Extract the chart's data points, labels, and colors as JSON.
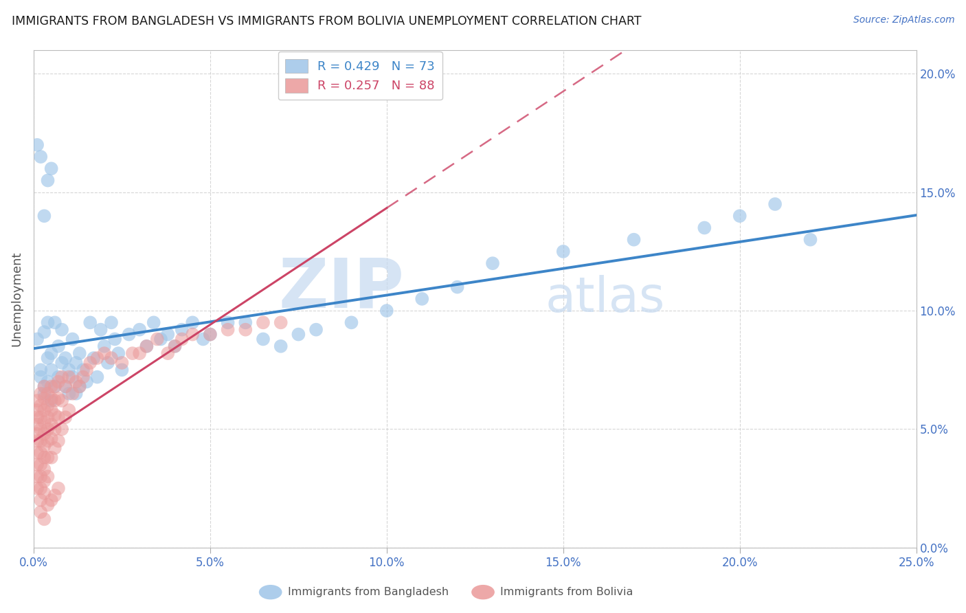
{
  "title": "IMMIGRANTS FROM BANGLADESH VS IMMIGRANTS FROM BOLIVIA UNEMPLOYMENT CORRELATION CHART",
  "source": "Source: ZipAtlas.com",
  "ylabel": "Unemployment",
  "xlim": [
    0.0,
    0.25
  ],
  "ylim": [
    0.0,
    0.21
  ],
  "xticks": [
    0.0,
    0.05,
    0.1,
    0.15,
    0.2,
    0.25
  ],
  "yticks": [
    0.0,
    0.05,
    0.1,
    0.15,
    0.2
  ],
  "xtick_labels": [
    "0.0%",
    "5.0%",
    "10.0%",
    "15.0%",
    "20.0%",
    "25.0%"
  ],
  "ytick_labels": [
    "0.0%",
    "5.0%",
    "10.0%",
    "15.0%",
    "20.0%"
  ],
  "watermark": "ZIPatlas",
  "bangladesh": {
    "name": "Immigrants from Bangladesh",
    "color": "#9fc5e8",
    "R": 0.429,
    "N": 73,
    "x": [
      0.001,
      0.002,
      0.002,
      0.003,
      0.003,
      0.003,
      0.004,
      0.004,
      0.004,
      0.005,
      0.005,
      0.005,
      0.006,
      0.006,
      0.007,
      0.007,
      0.008,
      0.008,
      0.009,
      0.009,
      0.01,
      0.01,
      0.011,
      0.011,
      0.012,
      0.012,
      0.013,
      0.013,
      0.014,
      0.015,
      0.016,
      0.017,
      0.018,
      0.019,
      0.02,
      0.021,
      0.022,
      0.023,
      0.024,
      0.025,
      0.027,
      0.03,
      0.032,
      0.034,
      0.036,
      0.038,
      0.04,
      0.042,
      0.045,
      0.048,
      0.05,
      0.055,
      0.06,
      0.065,
      0.07,
      0.075,
      0.08,
      0.09,
      0.1,
      0.11,
      0.12,
      0.13,
      0.15,
      0.17,
      0.19,
      0.2,
      0.21,
      0.22,
      0.001,
      0.002,
      0.003,
      0.004,
      0.005
    ],
    "y": [
      0.088,
      0.075,
      0.072,
      0.068,
      0.065,
      0.091,
      0.07,
      0.08,
      0.095,
      0.062,
      0.082,
      0.075,
      0.068,
      0.095,
      0.072,
      0.085,
      0.078,
      0.092,
      0.068,
      0.08,
      0.065,
      0.075,
      0.072,
      0.088,
      0.065,
      0.078,
      0.068,
      0.082,
      0.075,
      0.07,
      0.095,
      0.08,
      0.072,
      0.092,
      0.085,
      0.078,
      0.095,
      0.088,
      0.082,
      0.075,
      0.09,
      0.092,
      0.085,
      0.095,
      0.088,
      0.09,
      0.085,
      0.092,
      0.095,
      0.088,
      0.09,
      0.095,
      0.095,
      0.088,
      0.085,
      0.09,
      0.092,
      0.095,
      0.1,
      0.105,
      0.11,
      0.12,
      0.125,
      0.13,
      0.135,
      0.14,
      0.145,
      0.13,
      0.17,
      0.165,
      0.14,
      0.155,
      0.16
    ]
  },
  "bolivia": {
    "name": "Immigrants from Bolivia",
    "color": "#ea9999",
    "R": 0.257,
    "N": 88,
    "x": [
      0.001,
      0.001,
      0.001,
      0.001,
      0.001,
      0.001,
      0.001,
      0.001,
      0.001,
      0.001,
      0.002,
      0.002,
      0.002,
      0.002,
      0.002,
      0.002,
      0.002,
      0.002,
      0.002,
      0.002,
      0.003,
      0.003,
      0.003,
      0.003,
      0.003,
      0.003,
      0.003,
      0.003,
      0.003,
      0.003,
      0.004,
      0.004,
      0.004,
      0.004,
      0.004,
      0.004,
      0.004,
      0.005,
      0.005,
      0.005,
      0.005,
      0.005,
      0.005,
      0.006,
      0.006,
      0.006,
      0.006,
      0.006,
      0.007,
      0.007,
      0.007,
      0.007,
      0.008,
      0.008,
      0.008,
      0.009,
      0.009,
      0.01,
      0.01,
      0.011,
      0.012,
      0.013,
      0.014,
      0.015,
      0.016,
      0.018,
      0.02,
      0.022,
      0.025,
      0.028,
      0.03,
      0.032,
      0.035,
      0.038,
      0.04,
      0.042,
      0.045,
      0.05,
      0.055,
      0.06,
      0.065,
      0.07,
      0.002,
      0.003,
      0.004,
      0.005,
      0.006,
      0.007
    ],
    "y": [
      0.062,
      0.058,
      0.055,
      0.052,
      0.048,
      0.045,
      0.04,
      0.035,
      0.03,
      0.025,
      0.065,
      0.06,
      0.055,
      0.05,
      0.045,
      0.04,
      0.035,
      0.03,
      0.025,
      0.02,
      0.068,
      0.063,
      0.058,
      0.053,
      0.048,
      0.043,
      0.038,
      0.033,
      0.028,
      0.023,
      0.065,
      0.06,
      0.055,
      0.05,
      0.045,
      0.038,
      0.03,
      0.068,
      0.063,
      0.058,
      0.052,
      0.046,
      0.038,
      0.068,
      0.062,
      0.056,
      0.05,
      0.042,
      0.07,
      0.063,
      0.055,
      0.045,
      0.072,
      0.062,
      0.05,
      0.068,
      0.055,
      0.072,
      0.058,
      0.065,
      0.07,
      0.068,
      0.072,
      0.075,
      0.078,
      0.08,
      0.082,
      0.08,
      0.078,
      0.082,
      0.082,
      0.085,
      0.088,
      0.082,
      0.085,
      0.088,
      0.09,
      0.09,
      0.092,
      0.092,
      0.095,
      0.095,
      0.015,
      0.012,
      0.018,
      0.02,
      0.022,
      0.025
    ]
  },
  "bangladesh_line_color": "#3d85c8",
  "bolivia_line_color": "#cc4466",
  "title_color": "#1a1a1a",
  "axis_color": "#4472c4",
  "watermark_color": "#c5d9f0",
  "background_color": "#ffffff",
  "grid_color": "#cccccc"
}
